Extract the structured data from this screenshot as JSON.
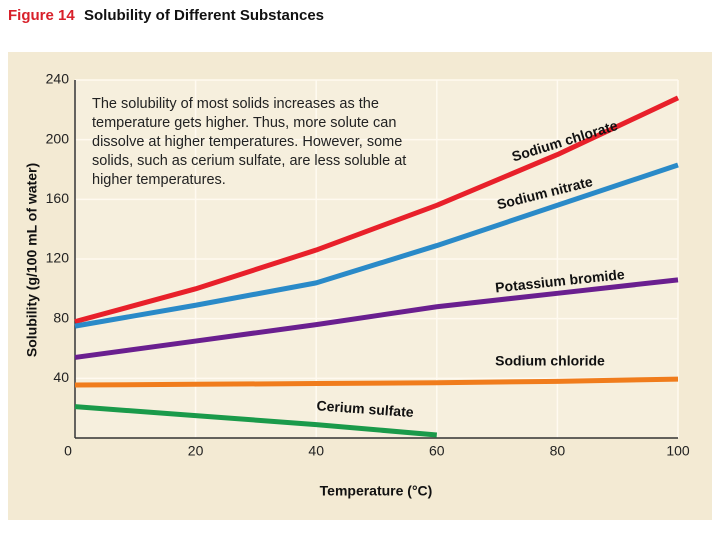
{
  "chart_data": {
    "type": "line",
    "figure_label": "Figure 14",
    "title": "Solubility of Different Substances",
    "annotation": "The solubility of most solids increases as the temperature gets higher. Thus, more solute can dissolve at higher temperatures. However, some solids, such as cerium sulfate, are less soluble at higher temperatures.",
    "x_label": "Temperature (°C)",
    "y_label": "Solubility (g/100 mL of water)",
    "x": [
      0,
      20,
      40,
      60,
      80,
      100
    ],
    "xlim": [
      0,
      100
    ],
    "xticks": [
      0,
      20,
      40,
      60,
      80,
      100
    ],
    "ylim": [
      0,
      240
    ],
    "yticks": [
      40,
      80,
      120,
      160,
      200,
      240
    ],
    "grid": true,
    "series": [
      {
        "name": "Sodium chlorate",
        "color": "#e8202a",
        "values": [
          78,
          100,
          126,
          156,
          190,
          228
        ]
      },
      {
        "name": "Sodium nitrate",
        "color": "#2a8ac8",
        "values": [
          75,
          89,
          104,
          129,
          156,
          183
        ]
      },
      {
        "name": "Potassium bromide",
        "color": "#6a1f8f",
        "values": [
          54,
          65,
          76,
          88,
          97,
          106
        ]
      },
      {
        "name": "Sodium chloride",
        "color": "#f07c1c",
        "values": [
          35.5,
          36,
          36.5,
          37,
          38,
          39.5
        ]
      },
      {
        "name": "Cerium sulfate",
        "color": "#1a9a4a",
        "values": [
          21,
          15,
          9,
          2,
          null,
          null
        ]
      }
    ]
  }
}
